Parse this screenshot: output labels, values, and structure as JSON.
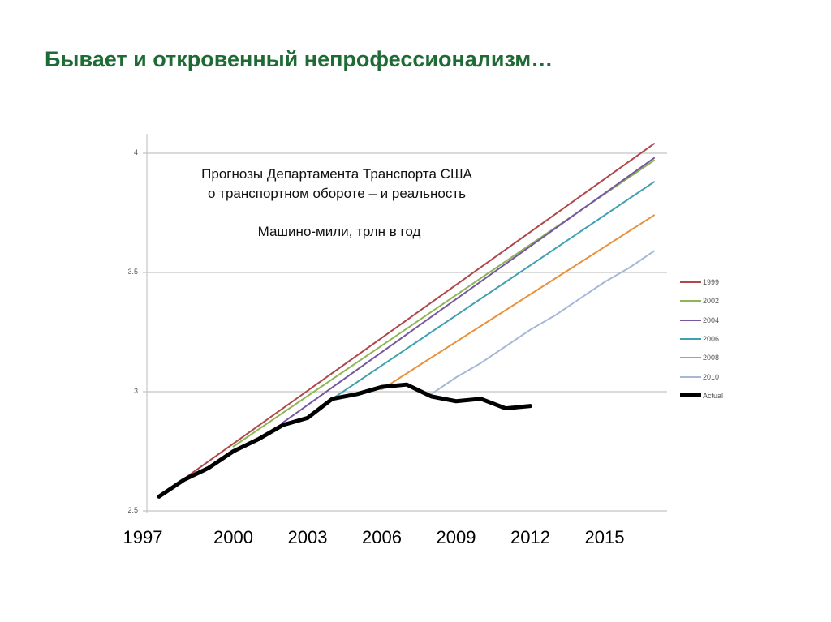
{
  "slide_title": "Бывает и откровенный непрофессионализм…",
  "chart_data": {
    "type": "line",
    "title_lines": [
      "Прогнозы Департамента Транспорта США",
      "о транспортном обороте – и реальность"
    ],
    "ylabel": "Машино-мили, трлн в год",
    "xlabel": "",
    "x_ticks": [
      "1997",
      "2000",
      "2003",
      "2006",
      "2009",
      "2012",
      "2015"
    ],
    "y_ticks": [
      "4",
      "3.5",
      "3",
      "2.5"
    ],
    "ylim": [
      2.5,
      4
    ],
    "xlim": [
      1997,
      2017
    ],
    "grid": true,
    "legend_position": "right",
    "series": [
      {
        "name": "1999",
        "color": "#b0474a",
        "x": [
          1997,
          2017
        ],
        "y": [
          2.56,
          4.04
        ]
      },
      {
        "name": "2002",
        "color": "#8db656",
        "x": [
          2000,
          2017
        ],
        "y": [
          2.77,
          3.97
        ]
      },
      {
        "name": "2004",
        "color": "#7657a0",
        "x": [
          2002,
          2017
        ],
        "y": [
          2.87,
          3.98
        ]
      },
      {
        "name": "2006",
        "color": "#3fa0b0",
        "x": [
          2004,
          2017
        ],
        "y": [
          2.97,
          3.88
        ]
      },
      {
        "name": "2008",
        "color": "#e8913a",
        "x": [
          2006,
          2017
        ],
        "y": [
          3.01,
          3.74
        ]
      },
      {
        "name": "2010",
        "color": "#a6b8d6",
        "x": [
          2008,
          2009,
          2010,
          2011,
          2012,
          2013,
          2014,
          2015,
          2016,
          2017
        ],
        "y": [
          2.99,
          3.06,
          3.12,
          3.19,
          3.26,
          3.32,
          3.39,
          3.46,
          3.52,
          3.59
        ]
      },
      {
        "name": "Actual",
        "color": "#000000",
        "x": [
          1997,
          1998,
          1999,
          2000,
          2001,
          2002,
          2003,
          2004,
          2005,
          2006,
          2007,
          2008,
          2009,
          2010,
          2011,
          2012
        ],
        "y": [
          2.56,
          2.63,
          2.68,
          2.75,
          2.8,
          2.86,
          2.89,
          2.97,
          2.99,
          3.02,
          3.03,
          2.98,
          2.96,
          2.97,
          2.93,
          2.94
        ]
      }
    ]
  }
}
